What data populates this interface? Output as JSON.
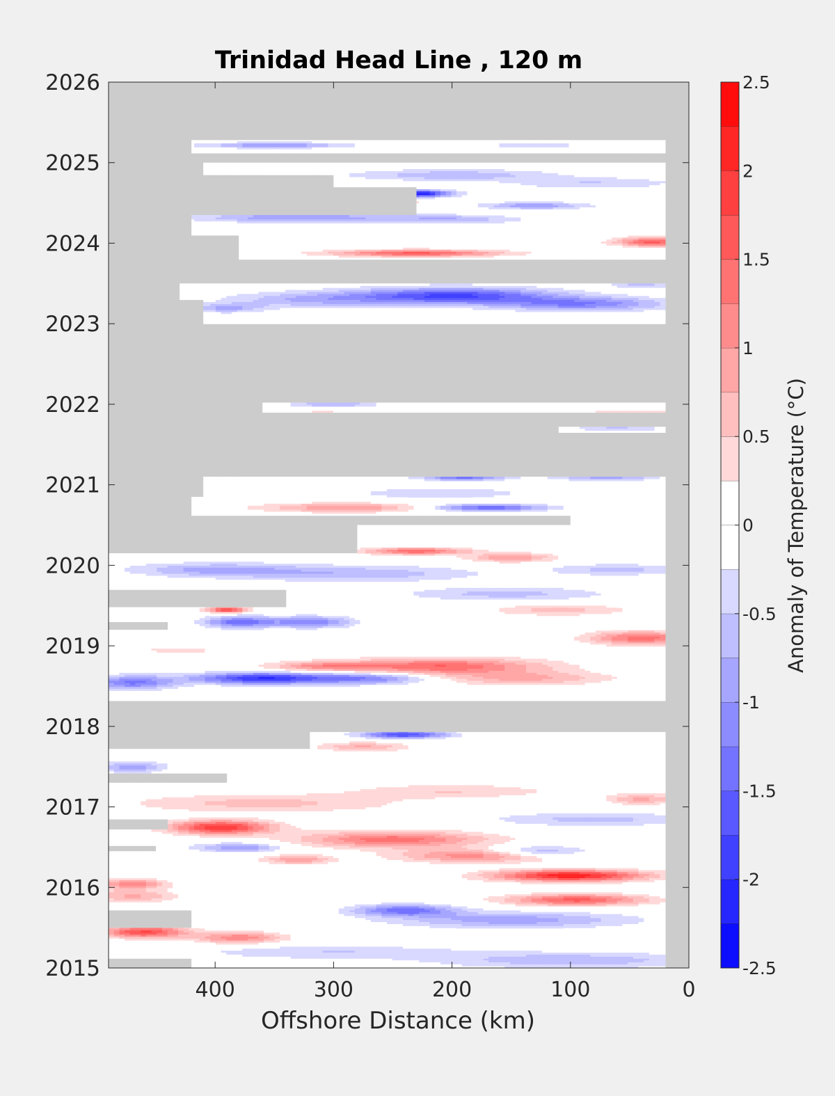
{
  "chart_data": {
    "type": "heatmap",
    "title": "Trinidad Head Line , 120 m",
    "xlabel": "Offshore Distance (km)",
    "ylabel": "",
    "x_reversed": true,
    "xlim": [
      490,
      0
    ],
    "ylim": [
      2015,
      2026
    ],
    "x_ticks": [
      400,
      300,
      200,
      100,
      0
    ],
    "y_ticks": [
      2015,
      2016,
      2017,
      2018,
      2019,
      2020,
      2021,
      2022,
      2023,
      2024,
      2025,
      2026
    ],
    "colorbar": {
      "label": "Anomaly of Temperature (°C)",
      "range": [
        -2.5,
        2.5
      ],
      "step": 0.25,
      "ticks": [
        -2.5,
        -2,
        -1.5,
        -1,
        -0.5,
        0,
        0.5,
        1,
        1.5,
        2,
        2.5
      ],
      "tick_labels": [
        "-2.5",
        "-2",
        "-1.5",
        "-1",
        "-0.5",
        "0",
        "0.5",
        "1",
        "1.5",
        "2",
        "2.5"
      ],
      "low_color": "#0000ff",
      "mid_color": "#ffffff",
      "high_color": "#ff0000"
    },
    "missing_color": "#cccccc",
    "data_x_extent": [
      490,
      20
    ],
    "coverage_bands": [
      {
        "y0": 2015.0,
        "y1": 2015.12,
        "x_max": 420
      },
      {
        "y0": 2015.12,
        "y1": 2015.5,
        "x_max": 490
      },
      {
        "y0": 2015.5,
        "y1": 2015.72,
        "x_max": 420
      },
      {
        "y0": 2015.72,
        "y1": 2016.45,
        "x_max": 490
      },
      {
        "y0": 2016.45,
        "y1": 2016.52,
        "x_max": 450
      },
      {
        "y0": 2016.52,
        "y1": 2016.72,
        "x_max": 490
      },
      {
        "y0": 2016.72,
        "y1": 2016.85,
        "x_max": 440
      },
      {
        "y0": 2016.85,
        "y1": 2017.3,
        "x_max": 490
      },
      {
        "y0": 2017.3,
        "y1": 2017.42,
        "x_max": 390
      },
      {
        "y0": 2017.42,
        "y1": 2017.72,
        "x_max": 490
      },
      {
        "y0": 2017.72,
        "y1": 2017.93,
        "x_max": 320
      },
      {
        "y0": 2018.32,
        "y1": 2019.2,
        "x_max": 490
      },
      {
        "y0": 2019.2,
        "y1": 2019.3,
        "x_max": 440
      },
      {
        "y0": 2019.3,
        "y1": 2019.48,
        "x_max": 490
      },
      {
        "y0": 2019.48,
        "y1": 2019.7,
        "x_max": 340
      },
      {
        "y0": 2019.7,
        "y1": 2020.15,
        "x_max": 490
      },
      {
        "y0": 2020.15,
        "y1": 2020.5,
        "x_max": 280
      },
      {
        "y0": 2020.5,
        "y1": 2020.62,
        "x_max": 100
      },
      {
        "y0": 2020.62,
        "y1": 2020.85,
        "x_max": 420
      },
      {
        "y0": 2020.85,
        "y1": 2021.1,
        "x_max": 410
      },
      {
        "y0": 2021.65,
        "y1": 2021.72,
        "x_max": 110
      },
      {
        "y0": 2021.9,
        "y1": 2022.02,
        "x_max": 360
      },
      {
        "y0": 2023.0,
        "y1": 2023.3,
        "x_max": 410
      },
      {
        "y0": 2023.3,
        "y1": 2023.5,
        "x_max": 430
      },
      {
        "y0": 2023.8,
        "y1": 2024.1,
        "x_max": 380
      },
      {
        "y0": 2024.1,
        "y1": 2024.35,
        "x_max": 420
      },
      {
        "y0": 2024.35,
        "y1": 2024.7,
        "x_max": 230
      },
      {
        "y0": 2024.7,
        "y1": 2024.85,
        "x_max": 300
      },
      {
        "y0": 2024.85,
        "y1": 2025.0,
        "x_max": 410
      },
      {
        "y0": 2025.12,
        "y1": 2025.28,
        "x_max": 420
      }
    ],
    "anomaly_features": [
      {
        "x": 395,
        "y": 2016.75,
        "sx": 30,
        "sy": 0.06,
        "value": 2.0
      },
      {
        "x": 250,
        "y": 2016.6,
        "sx": 55,
        "sy": 0.07,
        "value": 1.4
      },
      {
        "x": 180,
        "y": 2016.4,
        "sx": 45,
        "sy": 0.06,
        "value": 1.2
      },
      {
        "x": 100,
        "y": 2016.15,
        "sx": 45,
        "sy": 0.05,
        "value": 2.2
      },
      {
        "x": 95,
        "y": 2015.85,
        "sx": 40,
        "sy": 0.05,
        "value": 1.6
      },
      {
        "x": 460,
        "y": 2015.45,
        "sx": 25,
        "sy": 0.05,
        "value": 1.8
      },
      {
        "x": 380,
        "y": 2015.38,
        "sx": 25,
        "sy": 0.05,
        "value": 1.2
      },
      {
        "x": 470,
        "y": 2015.9,
        "sx": 25,
        "sy": 0.06,
        "value": 0.8
      },
      {
        "x": 360,
        "y": 2017.05,
        "sx": 80,
        "sy": 0.08,
        "value": 0.6
      },
      {
        "x": 330,
        "y": 2016.35,
        "sx": 20,
        "sy": 0.04,
        "value": 1.0
      },
      {
        "x": 40,
        "y": 2017.1,
        "sx": 20,
        "sy": 0.05,
        "value": 0.8
      },
      {
        "x": 275,
        "y": 2017.75,
        "sx": 25,
        "sy": 0.04,
        "value": 0.8
      },
      {
        "x": 240,
        "y": 2015.72,
        "sx": 30,
        "sy": 0.05,
        "value": -1.4
      },
      {
        "x": 150,
        "y": 2015.6,
        "sx": 70,
        "sy": 0.07,
        "value": -0.9
      },
      {
        "x": 100,
        "y": 2015.1,
        "sx": 80,
        "sy": 0.07,
        "value": -0.7
      },
      {
        "x": 300,
        "y": 2015.2,
        "sx": 80,
        "sy": 0.06,
        "value": -0.5
      },
      {
        "x": 380,
        "y": 2016.5,
        "sx": 25,
        "sy": 0.04,
        "value": -1.0
      },
      {
        "x": 130,
        "y": 2016.45,
        "sx": 30,
        "sy": 0.05,
        "value": -0.9
      },
      {
        "x": 240,
        "y": 2017.9,
        "sx": 25,
        "sy": 0.03,
        "value": -1.8
      },
      {
        "x": 470,
        "y": 2017.5,
        "sx": 20,
        "sy": 0.05,
        "value": -0.9
      },
      {
        "x": 210,
        "y": 2018.75,
        "sx": 60,
        "sy": 0.07,
        "value": 1.5
      },
      {
        "x": 140,
        "y": 2018.6,
        "sx": 50,
        "sy": 0.06,
        "value": 0.8
      },
      {
        "x": 40,
        "y": 2019.1,
        "sx": 30,
        "sy": 0.06,
        "value": 1.4
      },
      {
        "x": 310,
        "y": 2018.75,
        "sx": 30,
        "sy": 0.04,
        "value": 0.9
      },
      {
        "x": 360,
        "y": 2018.6,
        "sx": 40,
        "sy": 0.05,
        "value": -2.0
      },
      {
        "x": 270,
        "y": 2018.6,
        "sx": 35,
        "sy": 0.05,
        "value": -1.2
      },
      {
        "x": 470,
        "y": 2018.55,
        "sx": 25,
        "sy": 0.06,
        "value": -1.3
      },
      {
        "x": 320,
        "y": 2019.3,
        "sx": 25,
        "sy": 0.05,
        "value": -1.2
      },
      {
        "x": 380,
        "y": 2019.3,
        "sx": 20,
        "sy": 0.05,
        "value": -1.4
      },
      {
        "x": 390,
        "y": 2019.45,
        "sx": 12,
        "sy": 0.025,
        "value": 1.8
      },
      {
        "x": 400,
        "y": 2019.95,
        "sx": 50,
        "sy": 0.06,
        "value": -0.8
      },
      {
        "x": 280,
        "y": 2019.9,
        "sx": 70,
        "sy": 0.07,
        "value": -0.7
      },
      {
        "x": 155,
        "y": 2019.65,
        "sx": 60,
        "sy": 0.06,
        "value": -0.6
      },
      {
        "x": 60,
        "y": 2019.95,
        "sx": 40,
        "sy": 0.05,
        "value": -0.6
      },
      {
        "x": 230,
        "y": 2020.18,
        "sx": 30,
        "sy": 0.03,
        "value": 1.5
      },
      {
        "x": 150,
        "y": 2020.1,
        "sx": 25,
        "sy": 0.04,
        "value": 1.0
      },
      {
        "x": 110,
        "y": 2019.45,
        "sx": 40,
        "sy": 0.05,
        "value": 0.6
      },
      {
        "x": 190,
        "y": 2021.1,
        "sx": 25,
        "sy": 0.03,
        "value": -1.4
      },
      {
        "x": 170,
        "y": 2020.72,
        "sx": 35,
        "sy": 0.03,
        "value": -1.5
      },
      {
        "x": 290,
        "y": 2020.72,
        "sx": 50,
        "sy": 0.04,
        "value": 1.0
      },
      {
        "x": 70,
        "y": 2021.1,
        "sx": 30,
        "sy": 0.03,
        "value": -0.9
      },
      {
        "x": 210,
        "y": 2020.9,
        "sx": 50,
        "sy": 0.05,
        "value": -0.5
      },
      {
        "x": 310,
        "y": 2021.88,
        "sx": 25,
        "sy": 0.02,
        "value": 1.0
      },
      {
        "x": 130,
        "y": 2021.88,
        "sx": 40,
        "sy": 0.025,
        "value": -0.6
      },
      {
        "x": 300,
        "y": 2022.0,
        "sx": 25,
        "sy": 0.02,
        "value": -0.8
      },
      {
        "x": 60,
        "y": 2021.7,
        "sx": 25,
        "sy": 0.02,
        "value": -0.6
      },
      {
        "x": 50,
        "y": 2021.9,
        "sx": 30,
        "sy": 0.025,
        "value": 0.6
      },
      {
        "x": 200,
        "y": 2023.35,
        "sx": 60,
        "sy": 0.07,
        "value": -1.8
      },
      {
        "x": 90,
        "y": 2023.25,
        "sx": 50,
        "sy": 0.06,
        "value": -1.2
      },
      {
        "x": 320,
        "y": 2023.3,
        "sx": 50,
        "sy": 0.07,
        "value": -0.7
      },
      {
        "x": 390,
        "y": 2023.2,
        "sx": 20,
        "sy": 0.04,
        "value": -0.8
      },
      {
        "x": 40,
        "y": 2023.5,
        "sx": 20,
        "sy": 0.04,
        "value": -0.6
      },
      {
        "x": 230,
        "y": 2023.88,
        "sx": 50,
        "sy": 0.03,
        "value": 1.6
      },
      {
        "x": 150,
        "y": 2023.75,
        "sx": 25,
        "sy": 0.03,
        "value": -1.0
      },
      {
        "x": 30,
        "y": 2024.02,
        "sx": 22,
        "sy": 0.04,
        "value": 1.6
      },
      {
        "x": 60,
        "y": 2023.7,
        "sx": 30,
        "sy": 0.04,
        "value": 0.6
      },
      {
        "x": 330,
        "y": 2024.32,
        "sx": 60,
        "sy": 0.04,
        "value": -1.0
      },
      {
        "x": 200,
        "y": 2024.3,
        "sx": 40,
        "sy": 0.04,
        "value": -0.7
      },
      {
        "x": 230,
        "y": 2024.62,
        "sx": 20,
        "sy": 0.03,
        "value": -2.3
      },
      {
        "x": 265,
        "y": 2024.52,
        "sx": 20,
        "sy": 0.02,
        "value": 1.4
      },
      {
        "x": 130,
        "y": 2024.47,
        "sx": 30,
        "sy": 0.03,
        "value": -1.0
      },
      {
        "x": 200,
        "y": 2024.85,
        "sx": 60,
        "sy": 0.05,
        "value": -0.7
      },
      {
        "x": 80,
        "y": 2024.75,
        "sx": 50,
        "sy": 0.05,
        "value": -0.5
      },
      {
        "x": 350,
        "y": 2025.22,
        "sx": 40,
        "sy": 0.025,
        "value": -1.1
      },
      {
        "x": 130,
        "y": 2025.22,
        "sx": 30,
        "sy": 0.02,
        "value": -0.5
      },
      {
        "x": 80,
        "y": 2016.85,
        "sx": 60,
        "sy": 0.06,
        "value": -0.6
      },
      {
        "x": 200,
        "y": 2017.2,
        "sx": 60,
        "sy": 0.06,
        "value": 0.5
      },
      {
        "x": 430,
        "y": 2018.95,
        "sx": 40,
        "sy": 0.05,
        "value": 0.3
      },
      {
        "x": 470,
        "y": 2016.05,
        "sx": 20,
        "sy": 0.04,
        "value": 1.2
      }
    ]
  }
}
